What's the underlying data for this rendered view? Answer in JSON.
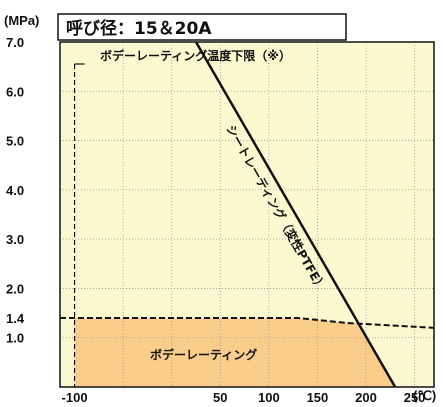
{
  "chart_data": {
    "type": "line",
    "title": "呼び径：15＆20A",
    "ylabel": "(MPa)",
    "xunit": "(℃)",
    "xlim": [
      -115,
      270
    ],
    "ylim": [
      0,
      7.0
    ],
    "x_ticks": [
      {
        "value": -100,
        "label": "-100"
      },
      {
        "value": 50,
        "label": "50"
      },
      {
        "value": 100,
        "label": "100"
      },
      {
        "value": 150,
        "label": "150"
      },
      {
        "value": 200,
        "label": "200"
      },
      {
        "value": 250,
        "label": "250"
      }
    ],
    "y_ticks": [
      {
        "value": 7.0,
        "label": "7.0"
      },
      {
        "value": 6.0,
        "label": "6.0"
      },
      {
        "value": 5.0,
        "label": "5.0"
      },
      {
        "value": 4.0,
        "label": "4.0"
      },
      {
        "value": 3.0,
        "label": "3.0"
      },
      {
        "value": 2.0,
        "label": "2.0"
      },
      {
        "value": 1.4,
        "label": "1.4"
      },
      {
        "value": 1.0,
        "label": "1.0"
      }
    ],
    "grid_x": [
      -50,
      0,
      50,
      100,
      150,
      200,
      250
    ],
    "grid_y": [
      1.0,
      2.0,
      3.0,
      4.0,
      5.0,
      6.0,
      7.0
    ],
    "seat_rating": {
      "label": "シートレーティング（変性PTFE）",
      "x": [
        25,
        230
      ],
      "y": [
        7.0,
        0
      ]
    },
    "body_rating": {
      "label": "ボデーレーティング",
      "x": [
        -115,
        -100,
        130,
        180,
        270
      ],
      "y": [
        1.4,
        1.4,
        1.4,
        1.3,
        1.2
      ]
    },
    "body_temp_limit": {
      "label": "ボデーレーティング温度下限（※）",
      "x": -100
    },
    "colors": {
      "background": "#fcf8d0",
      "fill": "#fbcd8a",
      "grid": "#999999",
      "line": "#111111"
    }
  }
}
